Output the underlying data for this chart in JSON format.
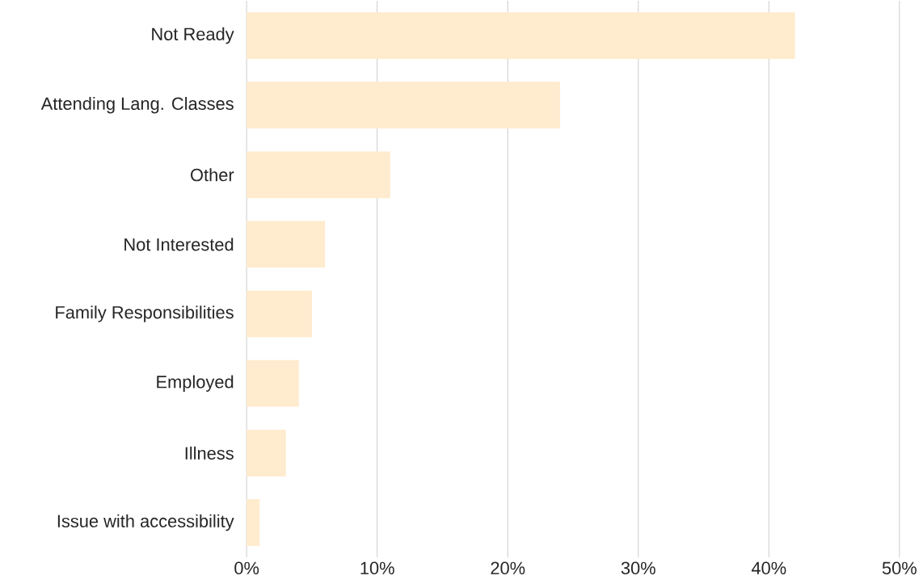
{
  "chart_data": {
    "type": "bar",
    "orientation": "horizontal",
    "categories": [
      "Not Ready",
      "Attending Lang. Classes",
      "Other",
      "Not Interested",
      "Family Responsibilities",
      "Employed",
      "Illness",
      "Issue with accessibility"
    ],
    "values": [
      42,
      24,
      11,
      6,
      5,
      4,
      3,
      1
    ],
    "color": "#ffebcd",
    "xlim": [
      0,
      50
    ],
    "xticks": [
      {
        "value": 0,
        "label": "0%"
      },
      {
        "value": 10,
        "label": "10%"
      },
      {
        "value": 20,
        "label": "20%"
      },
      {
        "value": 30,
        "label": "30%"
      },
      {
        "value": 40,
        "label": "40%"
      },
      {
        "value": 50,
        "label": "50%"
      }
    ],
    "grid": "x"
  }
}
